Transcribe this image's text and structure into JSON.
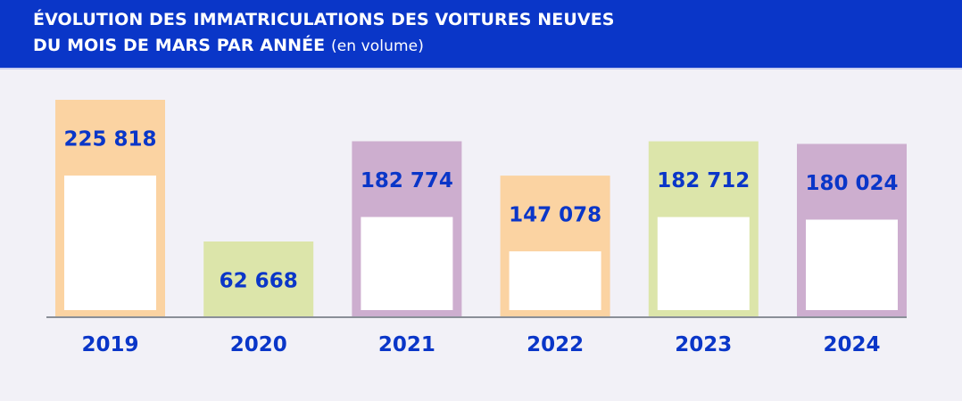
{
  "chart_data": {
    "type": "bar",
    "title_line1": "ÉVOLUTION DES IMMATRICULATIONS DES VOITURES NEUVES",
    "title_line2": "DU MOIS DE MARS PAR ANNÉE",
    "unit_note": "(en volume)",
    "categories": [
      "2019",
      "2020",
      "2021",
      "2022",
      "2023",
      "2024"
    ],
    "values": [
      225818,
      62668,
      182774,
      147078,
      182712,
      180024
    ],
    "value_labels": [
      "225 818",
      "62 668",
      "182 774",
      "147 078",
      "182 712",
      "180 024"
    ],
    "colors": [
      "#fbd3a2",
      "#dce5aa",
      "#cdaecf",
      "#fbd3a2",
      "#dce5aa",
      "#cdaecf"
    ],
    "label_color": "#0a36c8",
    "header_color": "#0a36c8",
    "ylim": [
      0,
      225818
    ],
    "grid": false,
    "legend": "none"
  }
}
